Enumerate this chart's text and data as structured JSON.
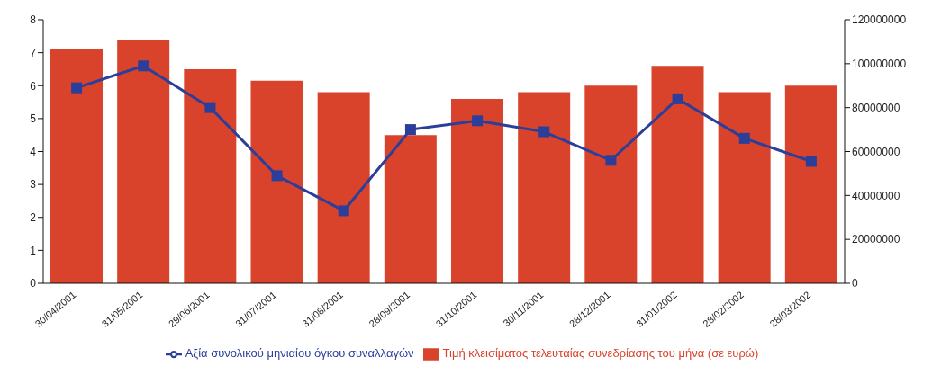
{
  "chart_data": {
    "type": "bar",
    "categories": [
      "30/04/2001",
      "31/05/2001",
      "29/06/2001",
      "31/07/2001",
      "31/08/2001",
      "28/09/2001",
      "31/10/2001",
      "30/11/2001",
      "28/12/2001",
      "31/01/2002",
      "28/02/2002",
      "28/03/2002"
    ],
    "series": [
      {
        "name": "Τιμή κλεισίματος τελευταίας συνεδρίασης του μήνα (σε ευρώ)",
        "color": "#d9432b",
        "values": [
          7.1,
          7.4,
          6.5,
          6.15,
          5.8,
          4.5,
          5.6,
          5.8,
          6.0,
          6.6,
          5.8,
          6.0
        ]
      },
      {
        "name": "Αξία συνολικού μηνιαίου όγκου συναλλαγών",
        "type": "line",
        "axis": "y2",
        "color": "#2b3f9a",
        "marker": "square",
        "values": [
          89000000,
          99000000,
          80000000,
          49000000,
          33000000,
          70000000,
          74000000,
          69000000,
          56000000,
          84000000,
          66000000,
          55500000
        ]
      }
    ],
    "ylim": [
      0,
      8
    ],
    "yticks": [
      0,
      1,
      2,
      3,
      4,
      5,
      6,
      7,
      8
    ],
    "y2lim": [
      0,
      120000000
    ],
    "y2ticks": [
      0,
      20000000,
      40000000,
      60000000,
      80000000,
      100000000,
      120000000
    ],
    "grid": false,
    "legend": "bottom"
  }
}
